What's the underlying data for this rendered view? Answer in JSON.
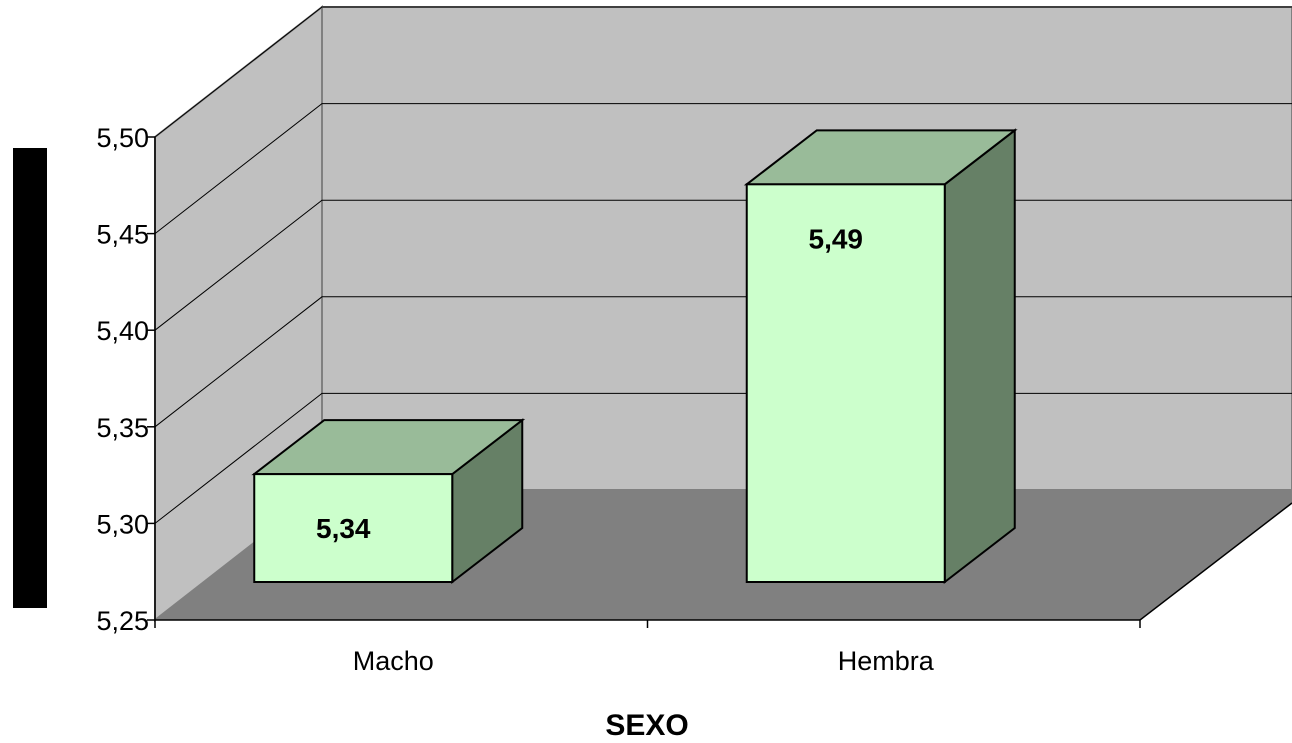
{
  "chart_data": {
    "type": "bar",
    "categories": [
      "Macho",
      "Hembra"
    ],
    "values": [
      5.34,
      5.49
    ],
    "data_labels": [
      "5,34",
      "5,49"
    ],
    "y_ticks": [
      5.25,
      5.3,
      5.35,
      5.4,
      5.45,
      5.5
    ],
    "y_tick_labels": [
      "5,25",
      "5,30",
      "5,35",
      "5,40",
      "5,45",
      "5,50"
    ],
    "ylim": [
      5.25,
      5.5
    ],
    "xlabel": "SEXO",
    "ylabel": "",
    "title": "",
    "grid": true,
    "three_d": true,
    "colors": {
      "bar_front": "#ccffcc",
      "bar_top": "#99bb99",
      "bar_side": "#668066",
      "back_wall": "#c0c0c0",
      "floor": "#808080",
      "gridline": "#000000"
    }
  }
}
